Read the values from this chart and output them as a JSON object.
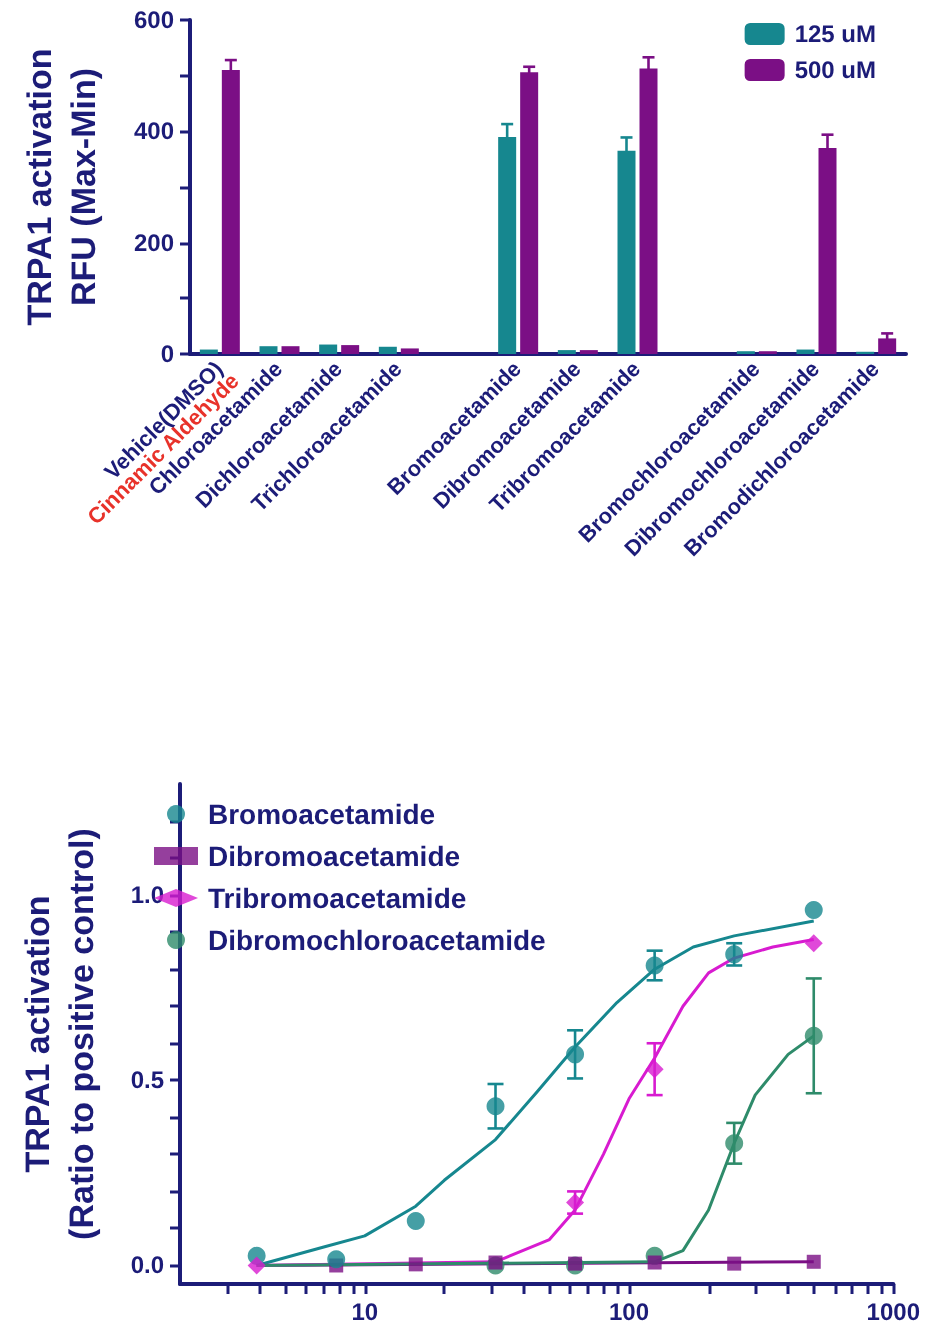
{
  "chart_data": [
    {
      "type": "bar",
      "ylabel": "TRPA1 activation\nRFU (Max-Min)",
      "categories": [
        "Vehicle(DMSO)",
        "Chloroacetamide",
        "Dichloroacetamide",
        "Trichloroacetamide",
        null,
        "Bromoacetamide",
        "Dibromoacetamide",
        "Tribromoacetamide",
        null,
        "Bromochloroacetamide",
        "Dibromochloroacetamide",
        "Bromodichloroacetamide"
      ],
      "series": [
        {
          "name": "125 uM",
          "color": "#16878f",
          "values": [
            8,
            14,
            17,
            13,
            null,
            390,
            7,
            365,
            null,
            5,
            8,
            4
          ],
          "errors": [
            null,
            null,
            null,
            null,
            null,
            23,
            null,
            24,
            null,
            null,
            null,
            null
          ]
        },
        {
          "name": "500 uM",
          "color": "#7b0f85",
          "values": [
            510,
            14,
            16,
            10,
            null,
            506,
            7,
            513,
            null,
            5,
            370,
            28
          ],
          "errors": [
            18,
            null,
            null,
            null,
            null,
            10,
            null,
            20,
            null,
            null,
            24,
            9
          ]
        }
      ],
      "ylim": [
        0,
        600
      ],
      "yticks": [
        0,
        {
          "value": 100,
          "label": null
        },
        200,
        {
          "value": 300,
          "label": null
        },
        400,
        {
          "value": 500,
          "label": null
        },
        600
      ],
      "annotations": [
        "Cinnamic Aldehyde"
      ],
      "legend": "top right",
      "grid": false
    },
    {
      "type": "scatter",
      "ylabel": "TRPA1 activation\n(Ratio to positive control)",
      "log": "x",
      "xlim": [
        2,
        1000
      ],
      "xticks": [
        {
          "value": 3,
          "label": null
        },
        {
          "value": 4,
          "label": null
        },
        {
          "value": 5,
          "label": null
        },
        {
          "value": 6,
          "label": null
        },
        {
          "value": 7,
          "label": null
        },
        {
          "value": 8,
          "label": null
        },
        {
          "value": 9,
          "label": null
        },
        10,
        {
          "value": 20,
          "label": null
        },
        {
          "value": 30,
          "label": null
        },
        {
          "value": 40,
          "label": null
        },
        {
          "value": 50,
          "label": null
        },
        {
          "value": 60,
          "label": null
        },
        {
          "value": 70,
          "label": null
        },
        {
          "value": 80,
          "label": null
        },
        {
          "value": 90,
          "label": null
        },
        100,
        {
          "value": 200,
          "label": null
        },
        {
          "value": 300,
          "label": null
        },
        {
          "value": 400,
          "label": null
        },
        {
          "value": 500,
          "label": null
        },
        {
          "value": 600,
          "label": null
        },
        {
          "value": 700,
          "label": null
        },
        {
          "value": 800,
          "label": null
        },
        {
          "value": 900,
          "label": null
        },
        1000
      ],
      "ylim": [
        -0.05,
        1.3
      ],
      "yticks": [
        {
          "value": 0,
          "label": "0.0"
        },
        {
          "value": 0.1,
          "label": null
        },
        {
          "value": 0.2,
          "label": null
        },
        {
          "value": 0.3,
          "label": null
        },
        {
          "value": 0.4,
          "label": null
        },
        {
          "value": 0.5,
          "label": "0.5"
        },
        {
          "value": 0.6,
          "label": null
        },
        {
          "value": 0.7,
          "label": null
        },
        {
          "value": 0.8,
          "label": null
        },
        {
          "value": 0.9,
          "label": null
        },
        {
          "value": 1,
          "label": "1.0"
        },
        {
          "value": 1.1,
          "label": null
        },
        {
          "value": 1.2,
          "label": null
        }
      ],
      "x": [
        3.9,
        7.8,
        15.6,
        31.25,
        62.5,
        125,
        250,
        500
      ],
      "series": [
        {
          "name": "Bromoacetamide",
          "color": "#16878f",
          "marker": "circle",
          "values": [
            0.026,
            0.017,
            0.12,
            0.43,
            0.57,
            0.81,
            0.84,
            0.96
          ],
          "errors": [
            null,
            null,
            null,
            0.06,
            0.065,
            0.04,
            0.03,
            null
          ]
        },
        {
          "name": "Dibromoacetamide",
          "color": "#7b0f85",
          "marker": "square",
          "values": [
            null,
            0,
            0.003,
            0.008,
            0.005,
            0.008,
            0.005,
            0.01
          ]
        },
        {
          "name": "Tribromoacetamide",
          "color": "#d81bd0",
          "marker": "diamond",
          "values": [
            0,
            null,
            null,
            null,
            0.17,
            0.53,
            null,
            0.87
          ],
          "errors": [
            null,
            null,
            null,
            null,
            0.03,
            0.07,
            null,
            null
          ]
        },
        {
          "name": "Dibromochloroacetamide",
          "color": "#2e8b6a",
          "marker": "circle",
          "values": [
            null,
            null,
            null,
            0,
            0,
            0.026,
            0.33,
            0.62
          ],
          "errors": [
            null,
            null,
            null,
            null,
            null,
            null,
            0.055,
            0.155
          ]
        },
        {
          "type": "line",
          "color": "#16878f",
          "marker": "none",
          "x": [
            3.9,
            7,
            10,
            15.6,
            20,
            31.25,
            45,
            62.5,
            90,
            125,
            175,
            250,
            500
          ],
          "values": [
            0,
            0.05,
            0.08,
            0.16,
            0.23,
            0.34,
            0.47,
            0.59,
            0.71,
            0.8,
            0.86,
            0.89,
            0.93
          ]
        },
        {
          "type": "line",
          "color": "#7b0f85",
          "marker": "none",
          "x": [
            3.9,
            500
          ],
          "values": [
            0,
            0.01
          ]
        },
        {
          "type": "line",
          "color": "#d81bd0",
          "marker": "none",
          "x": [
            3.9,
            31.25,
            50,
            62.5,
            80,
            100,
            125,
            160,
            200,
            250,
            350,
            500
          ],
          "values": [
            0,
            0.01,
            0.07,
            0.15,
            0.3,
            0.45,
            0.56,
            0.7,
            0.79,
            0.83,
            0.86,
            0.88
          ]
        },
        {
          "type": "line",
          "color": "#2e8b6a",
          "marker": "none",
          "x": [
            3.9,
            125,
            160,
            200,
            250,
            300,
            400,
            500
          ],
          "values": [
            0,
            0.01,
            0.04,
            0.15,
            0.33,
            0.46,
            0.57,
            0.62
          ]
        }
      ],
      "legend": "top left",
      "grid": false
    }
  ]
}
